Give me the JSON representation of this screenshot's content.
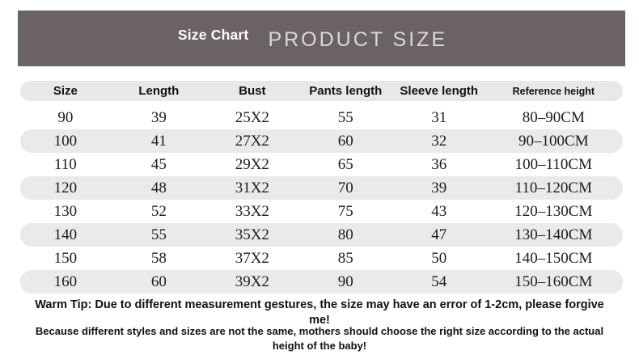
{
  "banner": {
    "badge": "Size Chart",
    "title": "PRODUCT SIZE"
  },
  "table": {
    "columns": [
      "Size",
      "Length",
      "Bust",
      "Pants length",
      "Sleeve length",
      "Reference height"
    ],
    "rows": [
      [
        "90",
        "39",
        "25X2",
        "55",
        "31",
        "80–90CM"
      ],
      [
        "100",
        "41",
        "27X2",
        "60",
        "32",
        "90–100CM"
      ],
      [
        "110",
        "45",
        "29X2",
        "65",
        "36",
        "100–110CM"
      ],
      [
        "120",
        "48",
        "31X2",
        "70",
        "39",
        "110–120CM"
      ],
      [
        "130",
        "52",
        "33X2",
        "75",
        "43",
        "120–130CM"
      ],
      [
        "140",
        "55",
        "35X2",
        "80",
        "47",
        "130–140CM"
      ],
      [
        "150",
        "58",
        "37X2",
        "85",
        "50",
        "140–150CM"
      ],
      [
        "160",
        "60",
        "39X2",
        "90",
        "54",
        "150–160CM"
      ]
    ]
  },
  "notes": {
    "warm_tip": "Warm Tip: Due to different measurement gestures, the size may have an error of 1-2cm, please forgive me!",
    "size_advice": "Because different styles and sizes are not the same, mothers should choose the right size according to the actual height of the baby!"
  },
  "colors": {
    "banner_bg": "#6a6267",
    "header_row_bg": "#e8e8e8",
    "row_alt_bg": "#eaeaea"
  }
}
